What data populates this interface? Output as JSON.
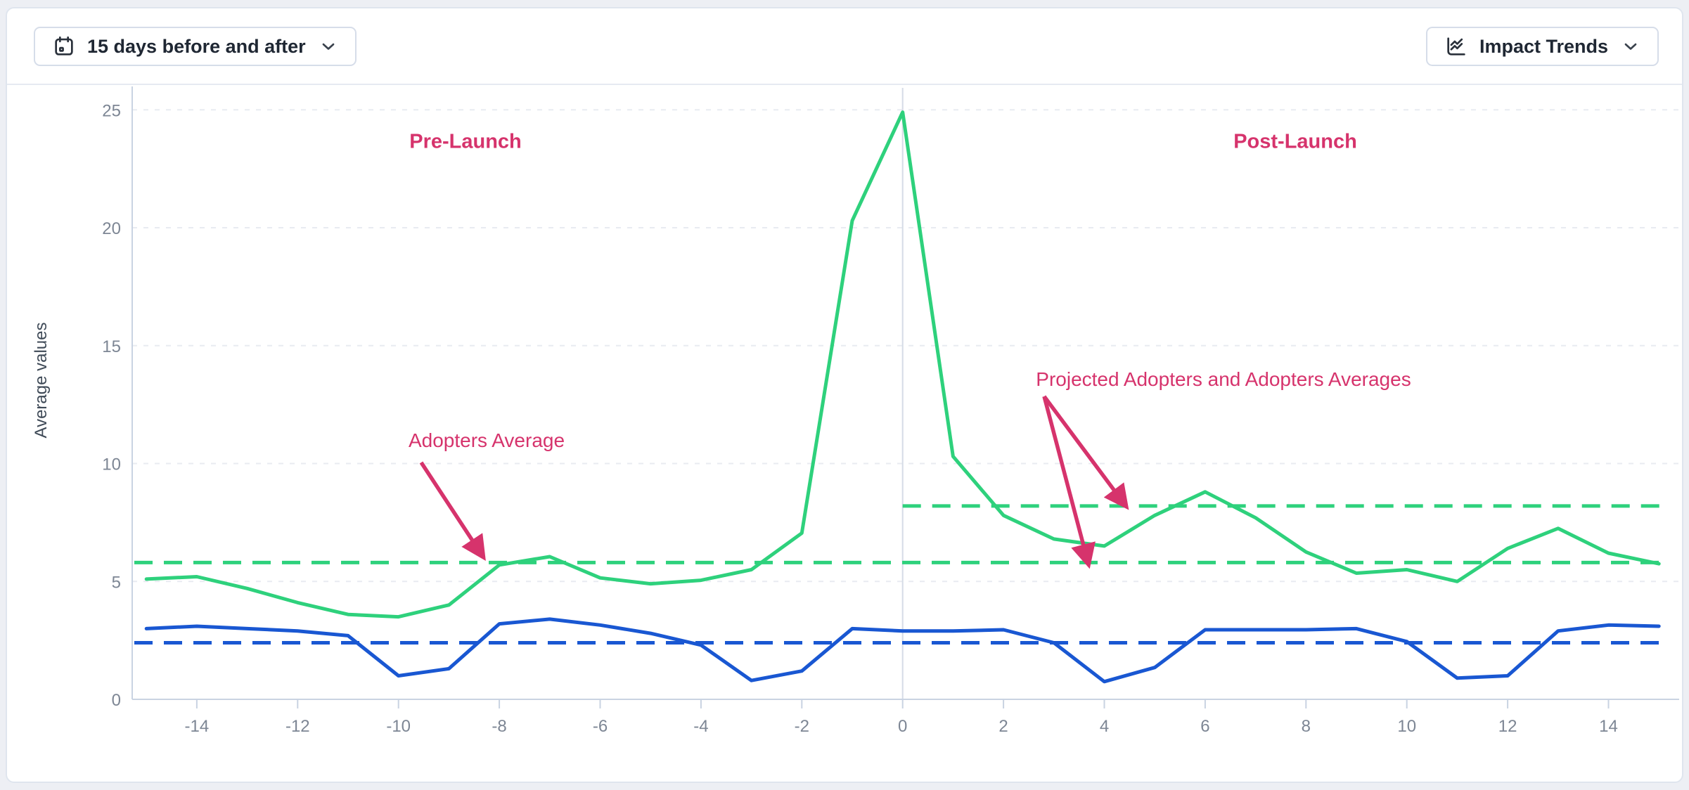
{
  "toolbar": {
    "date_range_button": {
      "label": "15 days before and after",
      "icon": "calendar-icon"
    },
    "trends_button": {
      "label": "Impact Trends",
      "icon": "chart-line-icon"
    }
  },
  "colors": {
    "green": "#2ed17c",
    "blue": "#1957d2",
    "pink": "#d6336c",
    "axis": "#c9d3e2",
    "grid": "#e8ebf1",
    "divider": "#d6dce6",
    "tick_text": "#7d8694",
    "button_text": "#1f2733",
    "border": "#dfe5ee",
    "page_bg": "#edeff4"
  },
  "chart_data": {
    "type": "line",
    "title": "",
    "xlabel": "",
    "ylabel": "Average values",
    "xlim": [
      -15.3,
      15.5
    ],
    "ylim": [
      0,
      26
    ],
    "xticks": [
      -14,
      -12,
      -10,
      -8,
      -6,
      -4,
      -2,
      0,
      2,
      4,
      6,
      8,
      10,
      12,
      14
    ],
    "yticks": [
      0,
      5,
      10,
      15,
      20,
      25
    ],
    "grid": true,
    "launch_divider_x": 0,
    "x": [
      -15,
      -14,
      -13,
      -12,
      -11,
      -10,
      -9,
      -8,
      -7,
      -6,
      -5,
      -4,
      -3,
      -2,
      -1,
      0,
      1,
      2,
      3,
      4,
      5,
      6,
      7,
      8,
      9,
      10,
      11,
      12,
      13,
      14,
      15
    ],
    "series": [
      {
        "name": "adopters",
        "color_key": "green",
        "style": "solid",
        "values": [
          5.1,
          5.2,
          4.7,
          4.1,
          3.6,
          3.5,
          4.0,
          5.7,
          6.05,
          5.15,
          4.9,
          5.05,
          5.5,
          7.05,
          20.3,
          24.9,
          10.3,
          7.8,
          6.8,
          6.5,
          7.8,
          8.8,
          7.7,
          6.25,
          5.35,
          5.5,
          5.0,
          6.4,
          7.25,
          6.2,
          5.75
        ]
      },
      {
        "name": "comparison",
        "color_key": "blue",
        "style": "solid",
        "values": [
          3.0,
          3.1,
          3.0,
          2.9,
          2.7,
          1.0,
          1.3,
          3.2,
          3.4,
          3.15,
          2.8,
          2.3,
          0.8,
          1.2,
          3.0,
          2.9,
          2.9,
          2.95,
          2.4,
          0.75,
          1.35,
          2.95,
          2.95,
          2.95,
          3.0,
          2.45,
          0.9,
          1.0,
          2.9,
          3.15,
          3.1
        ]
      }
    ],
    "reference_lines": [
      {
        "name": "adopters-average",
        "value": 5.8,
        "color_key": "green",
        "style": "dashed",
        "span": "full"
      },
      {
        "name": "post-launch-adopters-average",
        "value": 8.2,
        "color_key": "green",
        "style": "dashed",
        "span": "post"
      },
      {
        "name": "comparison-average",
        "value": 2.4,
        "color_key": "blue",
        "style": "dashed",
        "span": "full"
      }
    ],
    "annotations": {
      "pre_launch": "Pre-Launch",
      "post_launch": "Post-Launch",
      "adopters_average": "Adopters Average",
      "projected": "Projected Adopters and Adopters Averages"
    }
  }
}
